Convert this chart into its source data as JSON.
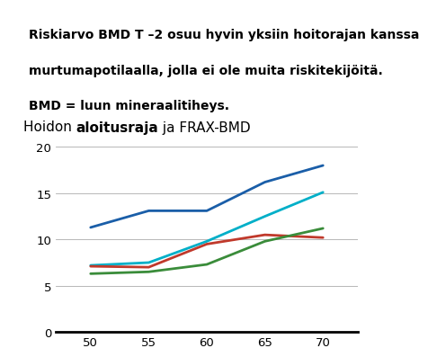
{
  "title_parts": [
    {
      "text": "Hoidon ",
      "bold": false
    },
    {
      "text": "aloitusraja",
      "bold": true
    },
    {
      "text": " ja FRAX-BMD",
      "bold": false
    }
  ],
  "header_text_parts": [
    "Riskiarvo BMD T –2 osuu hyvin yksiin hoitorajan kanssa",
    "murtumapotilaalla, jolla ei ole muita riskitekijöitä.",
    "BMD = luun mineraalitiheys."
  ],
  "x": [
    50,
    55,
    60,
    65,
    70
  ],
  "lines": [
    {
      "color": "#1a5ea8",
      "values": [
        11.3,
        13.1,
        13.1,
        16.2,
        18.0
      ]
    },
    {
      "color": "#00afc8",
      "values": [
        7.2,
        7.5,
        9.8,
        12.5,
        15.1
      ]
    },
    {
      "color": "#c0392b",
      "values": [
        7.1,
        7.0,
        9.5,
        10.5,
        10.2
      ]
    },
    {
      "color": "#3a8c3a",
      "values": [
        6.3,
        6.5,
        7.3,
        9.8,
        11.2
      ]
    }
  ],
  "xlim": [
    47,
    73
  ],
  "ylim": [
    0,
    21
  ],
  "yticks": [
    0,
    5,
    10,
    15,
    20
  ],
  "xticks": [
    50,
    55,
    60,
    65,
    70
  ],
  "top_bar_color": "#8b1a1a",
  "background_color": "#ffffff",
  "title_fontsize": 11,
  "header_fontsize": 10,
  "linewidth": 2.0
}
